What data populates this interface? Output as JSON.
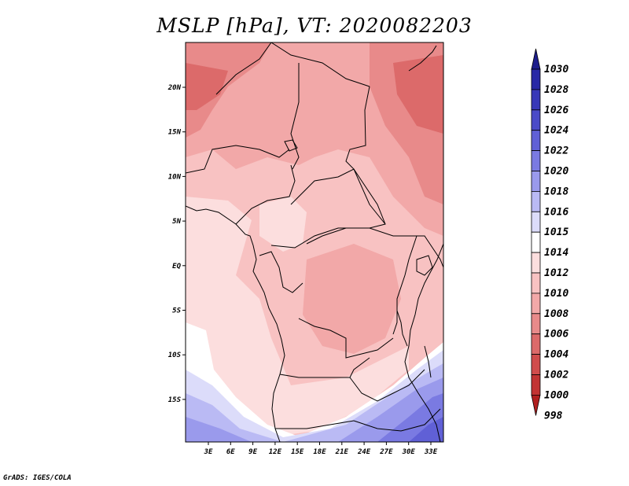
{
  "title": "MSLP [hPa], VT: 2020082203",
  "credit": "GrADS: IGES/COLA",
  "map": {
    "lon_labels": [
      "3E",
      "6E",
      "9E",
      "12E",
      "15E",
      "18E",
      "21E",
      "24E",
      "27E",
      "30E",
      "33E"
    ],
    "lat_labels": [
      "20N",
      "15N",
      "10N",
      "5N",
      "EQ",
      "5S",
      "10S",
      "15S"
    ]
  },
  "colorbar": {
    "levels": [
      "1030",
      "1028",
      "1026",
      "1024",
      "1022",
      "1020",
      "1018",
      "1016",
      "1015",
      "1014",
      "1012",
      "1010",
      "1008",
      "1006",
      "1004",
      "1002",
      "1000",
      "998"
    ],
    "colors": [
      "#1e1e8c",
      "#2828a6",
      "#3838b8",
      "#4a4ac8",
      "#6060d6",
      "#7a7ae2",
      "#9a9aec",
      "#babaf4",
      "#dcdcfa",
      "#ffffff",
      "#fcdede",
      "#f8c2c2",
      "#f2a8a8",
      "#e88a8a",
      "#dc6a6a",
      "#d04c4c",
      "#c23434",
      "#b02020"
    ]
  },
  "colors": {
    "frame": "#000000",
    "border_lines": "#000000"
  }
}
